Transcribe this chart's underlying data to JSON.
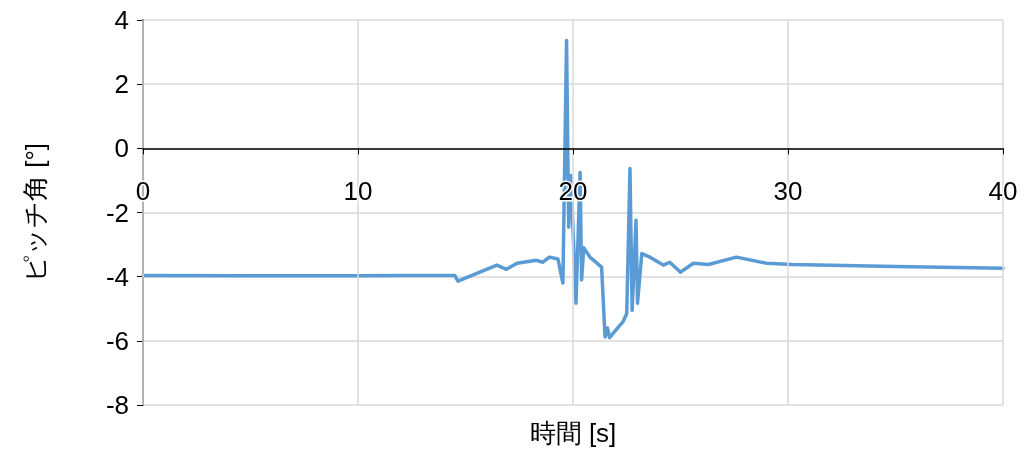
{
  "chart_data": {
    "type": "line",
    "xlabel": "時間 [s]",
    "ylabel": "ピッチ角 [°]",
    "xlim": [
      0,
      40
    ],
    "xticks": [
      0,
      10,
      20,
      30,
      40
    ],
    "ylim": [
      -8,
      4
    ],
    "yticks": [
      -8,
      -6,
      -4,
      -2,
      0,
      2,
      4
    ],
    "grid": true,
    "marker": "none",
    "line_style": "solid",
    "series": [
      {
        "color": "#5b9bd5",
        "x": [
          0,
          5,
          10,
          12,
          14,
          14.5,
          14.65,
          15.3,
          16.46,
          16.9,
          17.4,
          18.3,
          18.6,
          18.9,
          19.3,
          19.53,
          19.7,
          19.8,
          19.9,
          20.14,
          20.33,
          20.4,
          20.5,
          20.8,
          21.33,
          21.49,
          21.6,
          21.7,
          21.95,
          22.33,
          22.5,
          22.65,
          22.75,
          22.93,
          23.0,
          23.2,
          23.6,
          24.2,
          24.5,
          25.0,
          25.6,
          26.3,
          27.6,
          29.0,
          30.2,
          35,
          40
        ],
        "values": [
          -3.96,
          -3.97,
          -3.97,
          -3.96,
          -3.96,
          -3.96,
          -4.14,
          -3.96,
          -3.64,
          -3.77,
          -3.58,
          -3.49,
          -3.55,
          -3.39,
          -3.45,
          -4.2,
          3.36,
          -2.46,
          -0.85,
          -4.83,
          -0.75,
          -4.1,
          -3.1,
          -3.4,
          -3.7,
          -5.88,
          -5.6,
          -5.9,
          -5.7,
          -5.4,
          -5.15,
          -0.63,
          -5.05,
          -2.24,
          -4.83,
          -3.28,
          -3.4,
          -3.64,
          -3.55,
          -3.86,
          -3.58,
          -3.62,
          -3.39,
          -3.58,
          -3.62,
          -3.68,
          -3.74
        ]
      }
    ]
  }
}
